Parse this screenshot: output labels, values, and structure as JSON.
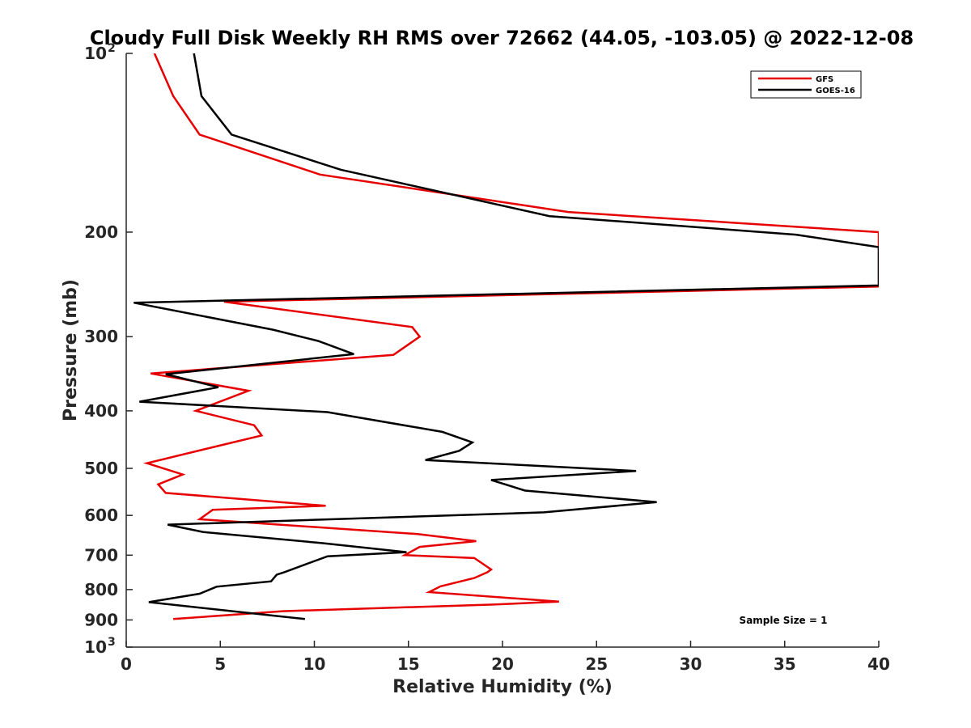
{
  "chart_data": {
    "type": "line",
    "title": "Cloudy Full Disk Weekly RH RMS over 72662 (44.05, -103.05) @ 2022-12-08",
    "xlabel": "Relative Humidity (%)",
    "ylabel": "Pressure (mb)",
    "xlim": [
      0,
      40
    ],
    "ylim": [
      100,
      1000
    ],
    "y_scale": "log",
    "y_reversed": true,
    "x_ticks": [
      "0",
      "5",
      "10",
      "15",
      "20",
      "25",
      "30",
      "35",
      "40"
    ],
    "y_ticks": [
      {
        "value": 100,
        "base": "10",
        "exp": "2"
      },
      {
        "value": 200,
        "base": "200",
        "exp": ""
      },
      {
        "value": 300,
        "base": "300",
        "exp": ""
      },
      {
        "value": 400,
        "base": "400",
        "exp": ""
      },
      {
        "value": 500,
        "base": "500",
        "exp": ""
      },
      {
        "value": 600,
        "base": "600",
        "exp": ""
      },
      {
        "value": 700,
        "base": "700",
        "exp": ""
      },
      {
        "value": 800,
        "base": "800",
        "exp": ""
      },
      {
        "value": 900,
        "base": "900",
        "exp": ""
      },
      {
        "value": 1000,
        "base": "10",
        "exp": "3"
      }
    ],
    "grid": false,
    "legend_position": "top-right",
    "annotation": "Sample Size = 1",
    "series": [
      {
        "name": "GFS",
        "color": "#e60000",
        "points": [
          [
            1.5,
            100
          ],
          [
            2.5,
            118
          ],
          [
            3.9,
            137
          ],
          [
            10.3,
            160
          ],
          [
            23.5,
            185
          ],
          [
            40,
            200
          ],
          [
            40,
            247
          ],
          [
            5.2,
            262
          ],
          [
            15.2,
            289
          ],
          [
            15.6,
            300
          ],
          [
            14.2,
            322
          ],
          [
            1.3,
            346
          ],
          [
            6.5,
            370
          ],
          [
            3.7,
            400
          ],
          [
            6.8,
            423
          ],
          [
            7.2,
            440
          ],
          [
            1.1,
            490
          ],
          [
            3.0,
            512
          ],
          [
            1.7,
            532
          ],
          [
            2.1,
            550
          ],
          [
            10.6,
            578
          ],
          [
            4.6,
            587
          ],
          [
            3.9,
            609
          ],
          [
            15.5,
            645
          ],
          [
            18.6,
            663
          ],
          [
            15.6,
            678
          ],
          [
            14.8,
            700
          ],
          [
            18.5,
            708
          ],
          [
            19.4,
            740
          ],
          [
            19.2,
            748
          ],
          [
            18.5,
            765
          ],
          [
            16.7,
            790
          ],
          [
            16.1,
            808
          ],
          [
            23.0,
            838
          ],
          [
            19.5,
            848
          ],
          [
            8.3,
            870
          ],
          [
            2.5,
            897
          ]
        ]
      },
      {
        "name": "GOES-16",
        "color": "#000000",
        "points": [
          [
            3.6,
            100
          ],
          [
            4.0,
            118
          ],
          [
            5.6,
            137
          ],
          [
            11.4,
            157
          ],
          [
            22.5,
            188
          ],
          [
            35.6,
            202
          ],
          [
            40,
            212
          ],
          [
            40,
            246
          ],
          [
            0.4,
            263
          ],
          [
            7.8,
            292
          ],
          [
            10.2,
            305
          ],
          [
            12.1,
            321
          ],
          [
            2.1,
            347
          ],
          [
            4.9,
            365
          ],
          [
            0.7,
            386
          ],
          [
            10.7,
            402
          ],
          [
            16.8,
            434
          ],
          [
            18.4,
            452
          ],
          [
            17.7,
            467
          ],
          [
            15.9,
            484
          ],
          [
            27.1,
            505
          ],
          [
            19.4,
            523
          ],
          [
            21.2,
            545
          ],
          [
            28.2,
            570
          ],
          [
            22.2,
            593
          ],
          [
            2.2,
            622
          ],
          [
            4.1,
            640
          ],
          [
            10.4,
            668
          ],
          [
            14.9,
            692
          ],
          [
            10.7,
            703
          ],
          [
            8.4,
            748
          ],
          [
            8.0,
            755
          ],
          [
            7.7,
            775
          ],
          [
            4.8,
            791
          ],
          [
            3.9,
            813
          ],
          [
            1.2,
            840
          ],
          [
            9.5,
            897
          ]
        ]
      }
    ]
  }
}
